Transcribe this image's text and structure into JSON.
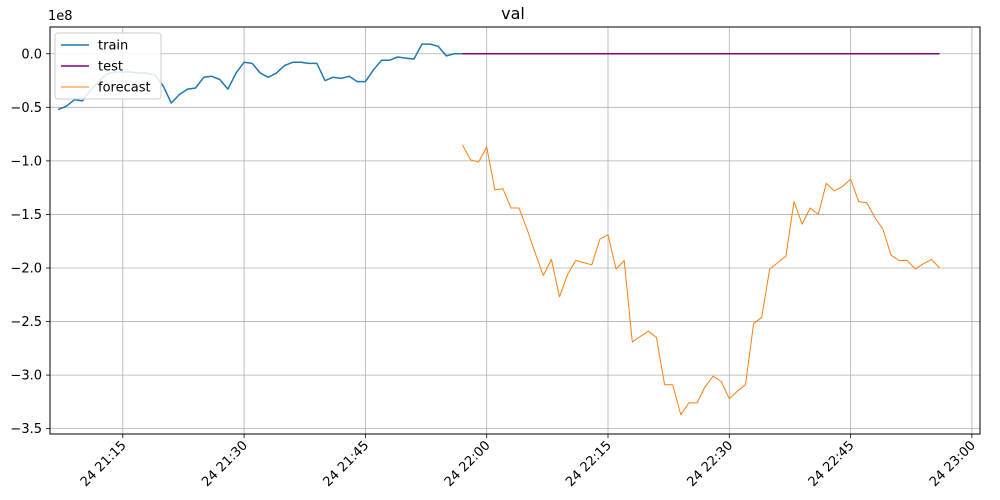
{
  "chart_data": {
    "type": "line",
    "title": "val",
    "xlabel": "",
    "ylabel": "",
    "y_scale_label": "1e8",
    "y_multiplier": 100000000,
    "ylim": [
      -3.55,
      0.25
    ],
    "xlim": [
      "24 21:06",
      "24 23:01"
    ],
    "x_ticks": [
      {
        "t": "24 21:15",
        "label": "24 21:15"
      },
      {
        "t": "24 21:30",
        "label": "24 21:30"
      },
      {
        "t": "24 21:45",
        "label": "24 21:45"
      },
      {
        "t": "24 22:00",
        "label": "24 22:00"
      },
      {
        "t": "24 22:15",
        "label": "24 22:15"
      },
      {
        "t": "24 22:30",
        "label": "24 22:30"
      },
      {
        "t": "24 22:45",
        "label": "24 22:45"
      },
      {
        "t": "24 23:00",
        "label": "24 23:00"
      }
    ],
    "y_ticks": [
      {
        "v": 0.0,
        "label": "0.0"
      },
      {
        "v": -0.5,
        "label": "−0.5"
      },
      {
        "v": -1.0,
        "label": "−1.0"
      },
      {
        "v": -1.5,
        "label": "−1.5"
      },
      {
        "v": -2.0,
        "label": "−2.0"
      },
      {
        "v": -2.5,
        "label": "−2.5"
      },
      {
        "v": -3.0,
        "label": "−3.0"
      },
      {
        "v": -3.5,
        "label": "−3.5"
      }
    ],
    "grid": true,
    "legend_position": "top-left",
    "series": [
      {
        "name": "train",
        "color": "#1f77b4",
        "width": 1.5,
        "x": [
          "24 21:07",
          "24 21:08",
          "24 21:09",
          "24 21:10",
          "24 21:11",
          "24 21:12",
          "24 21:13",
          "24 21:14",
          "24 21:15",
          "24 21:16",
          "24 21:17",
          "24 21:18",
          "24 21:19",
          "24 21:20",
          "24 21:21",
          "24 21:22",
          "24 21:23",
          "24 21:24",
          "24 21:25",
          "24 21:26",
          "24 21:27",
          "24 21:28",
          "24 21:29",
          "24 21:30",
          "24 21:31",
          "24 21:32",
          "24 21:33",
          "24 21:34",
          "24 21:35",
          "24 21:36",
          "24 21:37",
          "24 21:38",
          "24 21:39",
          "24 21:40",
          "24 21:41",
          "24 21:42",
          "24 21:43",
          "24 21:44",
          "24 21:45",
          "24 21:46",
          "24 21:47",
          "24 21:48",
          "24 21:49",
          "24 21:50",
          "24 21:51",
          "24 21:52",
          "24 21:53",
          "24 21:54",
          "24 21:55",
          "24 21:56",
          "24 21:57"
        ],
        "values": [
          -0.52,
          -0.49,
          -0.43,
          -0.44,
          -0.34,
          -0.26,
          -0.19,
          -0.17,
          -0.17,
          -0.17,
          -0.18,
          -0.18,
          -0.2,
          -0.3,
          -0.46,
          -0.38,
          -0.33,
          -0.32,
          -0.22,
          -0.21,
          -0.24,
          -0.33,
          -0.18,
          -0.08,
          -0.09,
          -0.18,
          -0.22,
          -0.18,
          -0.11,
          -0.08,
          -0.08,
          -0.09,
          -0.09,
          -0.25,
          -0.22,
          -0.23,
          -0.21,
          -0.26,
          -0.26,
          -0.15,
          -0.06,
          -0.06,
          -0.03,
          -0.04,
          -0.05,
          0.09,
          0.09,
          0.07,
          -0.02,
          0.0,
          0.0
        ]
      },
      {
        "name": "test",
        "color": "#800080",
        "width": 1.5,
        "x": [
          "24 21:57",
          "24 22:56"
        ],
        "values": [
          0.0,
          0.0
        ]
      },
      {
        "name": "forecast",
        "color": "#ff7f0e",
        "width": 1.0,
        "x": [
          "24 21:57",
          "24 21:58",
          "24 21:59",
          "24 22:00",
          "24 22:01",
          "24 22:02",
          "24 22:03",
          "24 22:04",
          "24 22:05",
          "24 22:06",
          "24 22:07",
          "24 22:08",
          "24 22:09",
          "24 22:10",
          "24 22:11",
          "24 22:12",
          "24 22:13",
          "24 22:14",
          "24 22:15",
          "24 22:16",
          "24 22:17",
          "24 22:18",
          "24 22:19",
          "24 22:20",
          "24 22:21",
          "24 22:22",
          "24 22:23",
          "24 22:24",
          "24 22:25",
          "24 22:26",
          "24 22:27",
          "24 22:28",
          "24 22:29",
          "24 22:30",
          "24 22:31",
          "24 22:32",
          "24 22:33",
          "24 22:34",
          "24 22:35",
          "24 22:36",
          "24 22:37",
          "24 22:38",
          "24 22:39",
          "24 22:40",
          "24 22:41",
          "24 22:42",
          "24 22:43",
          "24 22:44",
          "24 22:45",
          "24 22:46",
          "24 22:47",
          "24 22:48",
          "24 22:49",
          "24 22:50",
          "24 22:51",
          "24 22:52",
          "24 22:53",
          "24 22:54",
          "24 22:55",
          "24 22:56"
        ],
        "values": [
          -0.85,
          -0.99,
          -1.01,
          -0.87,
          -1.27,
          -1.26,
          -1.44,
          -1.44,
          -1.64,
          -1.86,
          -2.07,
          -1.92,
          -2.27,
          -2.06,
          -1.93,
          -1.95,
          -1.97,
          -1.73,
          -1.69,
          -2.01,
          -1.93,
          -2.69,
          -2.64,
          -2.59,
          -2.65,
          -3.09,
          -3.09,
          -3.37,
          -3.26,
          -3.26,
          -3.11,
          -3.01,
          -3.06,
          -3.22,
          -3.15,
          -3.09,
          -2.52,
          -2.46,
          -2.01,
          -1.95,
          -1.89,
          -1.38,
          -1.59,
          -1.44,
          -1.5,
          -1.21,
          -1.28,
          -1.24,
          -1.17,
          -1.38,
          -1.39,
          -1.53,
          -1.64,
          -1.88,
          -1.93,
          -1.93,
          -2.01,
          -1.96,
          -1.92,
          -2.0
        ]
      }
    ]
  }
}
